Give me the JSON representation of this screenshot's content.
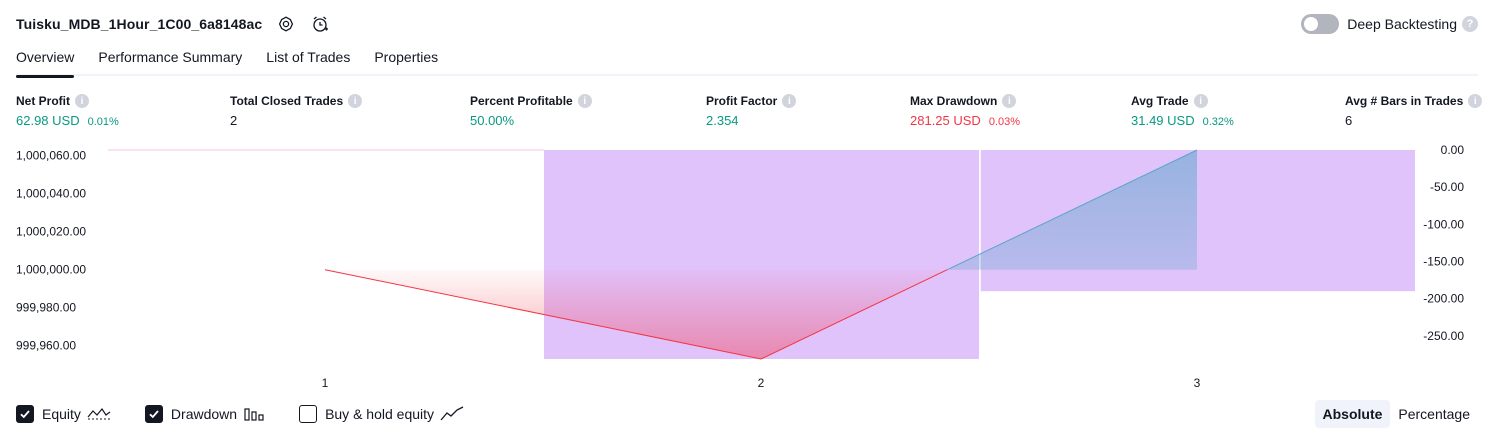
{
  "header": {
    "strategy_name": "Tuisku_MDB_1Hour_1C00_6a8148ac",
    "settings_icon": "gear-icon",
    "alert_icon": "alarm-add-icon"
  },
  "deep_backtesting": {
    "label": "Deep Backtesting",
    "enabled": false,
    "help": "?"
  },
  "tabs": [
    {
      "label": "Overview",
      "active": true
    },
    {
      "label": "Performance Summary",
      "active": false
    },
    {
      "label": "List of Trades",
      "active": false
    },
    {
      "label": "Properties",
      "active": false
    }
  ],
  "metrics": [
    {
      "label": "Net Profit",
      "value": "62.98 USD",
      "sub": "0.01%",
      "tone": "green"
    },
    {
      "label": "Total Closed Trades",
      "value": "2",
      "sub": "",
      "tone": "plain"
    },
    {
      "label": "Percent Profitable",
      "value": "50.00%",
      "sub": "",
      "tone": "green"
    },
    {
      "label": "Profit Factor",
      "value": "2.354",
      "sub": "",
      "tone": "green"
    },
    {
      "label": "Max Drawdown",
      "value": "281.25 USD",
      "sub": "0.03%",
      "tone": "red"
    },
    {
      "label": "Avg Trade",
      "value": "31.49 USD",
      "sub": "0.32%",
      "tone": "green"
    },
    {
      "label": "Avg # Bars in Trades",
      "value": "6",
      "sub": "",
      "tone": "plain"
    }
  ],
  "info_glyph": "i",
  "colors": {
    "positive": "#089981",
    "negative": "#f23645",
    "drawdown_bar": "#e1c3fc",
    "equity_up_line": "#5aa5c8",
    "equity_down_line": "#f23645"
  },
  "chart_data": {
    "type": "line",
    "x": [
      1,
      2,
      3
    ],
    "x_tick_labels": [
      "1",
      "2",
      "3"
    ],
    "left_axis": {
      "tick_labels": [
        "1,000,060.00",
        "1,000,040.00",
        "1,000,020.00",
        "1,000,000.00",
        "999,980.00",
        "999,960.00"
      ],
      "ticks": [
        1000060,
        1000040,
        1000020,
        1000000,
        999980,
        999960
      ],
      "ylim": [
        999953,
        1000063
      ]
    },
    "right_axis": {
      "tick_labels": [
        "0.00",
        "-50.00",
        "-100.00",
        "-150.00",
        "-200.00",
        "-250.00"
      ],
      "ticks": [
        0,
        -50,
        -100,
        -150,
        -200,
        -250
      ],
      "ylim": [
        -281.25,
        0
      ]
    },
    "series": [
      {
        "type": "line",
        "axis": "left",
        "x": [
          1,
          2,
          3
        ],
        "values": [
          1000000,
          999953,
          1000063
        ]
      },
      {
        "type": "bar",
        "axis": "right",
        "x": [
          2,
          3
        ],
        "values": [
          -281.25,
          -190
        ]
      }
    ],
    "baseline_marker": {
      "axis": "left",
      "value": 1000000
    },
    "grid": false
  },
  "legend": [
    {
      "label": "Equity",
      "checked": true,
      "icon": "equity-line-icon"
    },
    {
      "label": "Drawdown",
      "checked": true,
      "icon": "drawdown-bars-icon"
    },
    {
      "label": "Buy & hold equity",
      "checked": false,
      "icon": "buy-hold-line-icon"
    }
  ],
  "mode": [
    {
      "label": "Absolute",
      "active": true
    },
    {
      "label": "Percentage",
      "active": false
    }
  ]
}
